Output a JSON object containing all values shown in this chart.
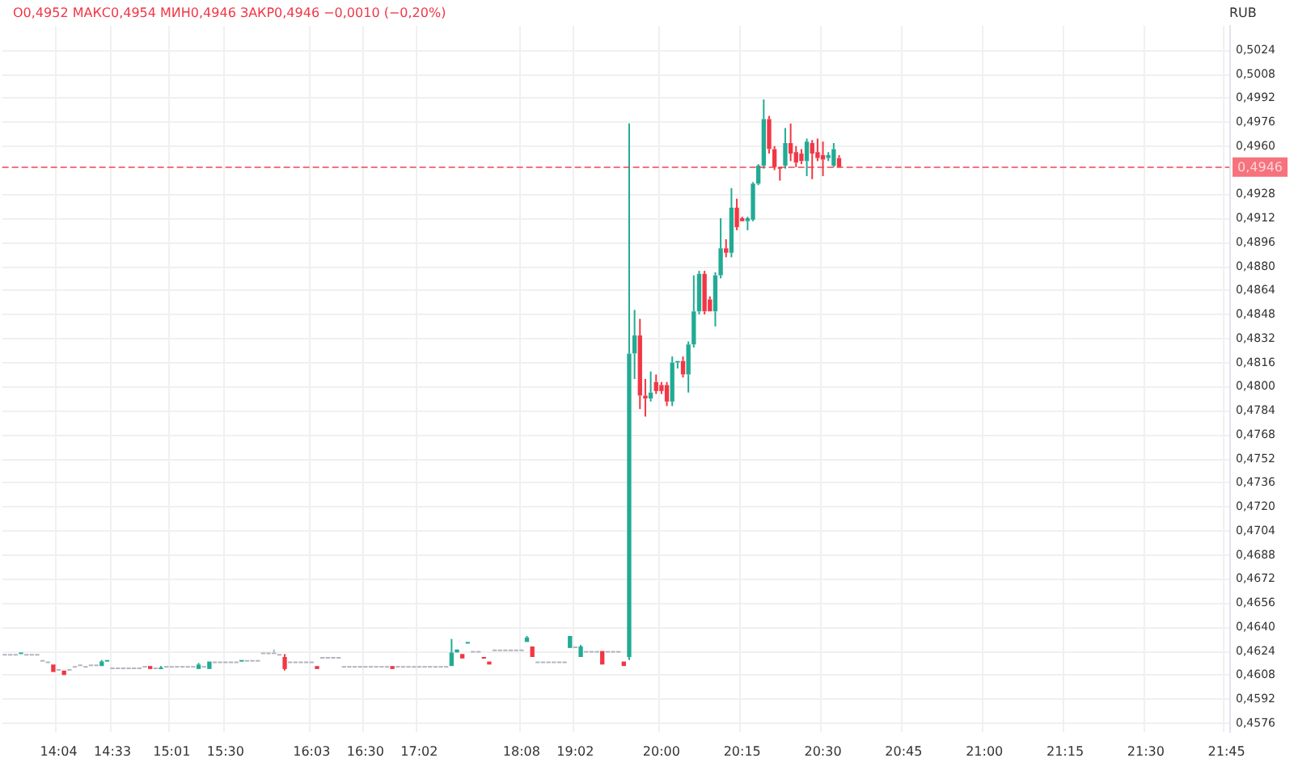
{
  "chart_data": {
    "type": "candlestick",
    "ylabel": "RUB",
    "annotations": [
      "О0,4952 МАКС0,4954 МИН0,4946 ЗАКР0,4946 −0,0010 (−0,20%)"
    ],
    "colors": [
      "#b2b5be",
      "#b2b5be",
      "#b2b5be",
      "#22ab94",
      "#b2b5be",
      "#b2b5be",
      "#b2b5be",
      "#b2b5be",
      "#b2b5be",
      "#f23645",
      "#b2b5be",
      "#f23645",
      "#b2b5be",
      "#b2b5be",
      "#b2b5be",
      "#b2b5be",
      "#b2b5be",
      "#b2b5be",
      "#22ab94",
      "#22ab94",
      "#b2b5be",
      "#b2b5be",
      "#b2b5be",
      "#b2b5be",
      "#b2b5be",
      "#b2b5be",
      "#b2b5be",
      "#f23645",
      "#b2b5be",
      "#22ab94",
      "#b2b5be",
      "#b2b5be",
      "#b2b5be",
      "#b2b5be",
      "#b2b5be",
      "#b2b5be",
      "#22ab94",
      "#b2b5be",
      "#22ab94",
      "#b2b5be",
      "#b2b5be",
      "#b2b5be",
      "#b2b5be",
      "#b2b5be",
      "#22ab94",
      "#b2b5be",
      "#b2b5be",
      "#b2b5be",
      "#b2b5be",
      "#b2b5be",
      "#b2b5be",
      "#b2b5be",
      "#f23645",
      "#b2b5be",
      "#b2b5be",
      "#b2b5be",
      "#b2b5be",
      "#b2b5be",
      "#f23645",
      "#b2b5be",
      "#b2b5be",
      "#b2b5be",
      "#b2b5be",
      "#b2b5be",
      "#b2b5be",
      "#b2b5be",
      "#b2b5be",
      "#b2b5be",
      "#b2b5be",
      "#b2b5be",
      "#b2b5be",
      "#b2b5be",
      "#f23645",
      "#b2b5be",
      "#b2b5be",
      "#b2b5be",
      "#b2b5be",
      "#b2b5be",
      "#b2b5be",
      "#b2b5be",
      "#b2b5be",
      "#b2b5be",
      "#b2b5be",
      "#22ab94",
      "#22ab94",
      "#f23645",
      "#22ab94",
      "#b2b5be",
      "#b2b5be",
      "#f23645",
      "#f23645",
      "#b2b5be",
      "#b2b5be",
      "#b2b5be",
      "#b2b5be",
      "#b2b5be",
      "#b2b5be",
      "#22ab94",
      "#f23645",
      "#b2b5be",
      "#b2b5be",
      "#b2b5be",
      "#b2b5be",
      "#b2b5be",
      "#b2b5be",
      "#22ab94",
      "#b2b5be",
      "#22ab94",
      "#b2b5be",
      "#b2b5be",
      "#b2b5be",
      "#f23645",
      "#b2b5be",
      "#b2b5be",
      "#b2b5be",
      "#f23645",
      "#22ab94",
      "#22ab94",
      "#f23645",
      "#f23645",
      "#22ab94",
      "#f23645",
      "#f23645",
      "#f23645",
      "#22ab94",
      "#22ab94",
      "#f23645",
      "#22ab94",
      "#22ab94",
      "#22ab94",
      "#f23645",
      "#f23645",
      "#22ab94",
      "#22ab94",
      "#f23645",
      "#22ab94",
      "#f23645",
      "#f23645",
      "#22ab94",
      "#22ab94",
      "#22ab94",
      "#22ab94",
      "#f23645",
      "#f23645",
      "#f23645",
      "#22ab94",
      "#f23645",
      "#f23645",
      "#f23645",
      "#22ab94",
      "#f23645",
      "#f23645",
      "#f23645",
      "#22ab94",
      "#22ab94",
      "#f23645",
      null,
      null,
      null,
      null,
      null,
      null,
      null,
      null,
      null,
      null,
      null,
      null,
      null,
      null,
      null,
      null,
      null,
      null,
      null,
      null,
      null,
      null,
      null,
      null,
      null,
      null,
      null,
      null,
      null,
      null,
      null,
      null,
      null,
      null,
      null,
      null,
      null,
      null,
      null,
      null,
      null,
      null,
      null,
      null,
      null,
      null,
      null,
      null,
      null,
      null,
      null,
      null,
      null,
      null,
      null,
      null,
      null,
      null,
      null,
      null,
      null,
      null,
      null,
      null,
      null,
      null,
      null,
      null,
      null,
      null,
      null,
      null
    ],
    "grid": true,
    "ylim": [
      0.457,
      0.504
    ],
    "yticks": [
      {
        "value": 0.4576,
        "label": "0,4576"
      },
      {
        "value": 0.4592,
        "label": "0,4592"
      },
      {
        "value": 0.4608,
        "label": "0,4608"
      },
      {
        "value": 0.4624,
        "label": "0,4624"
      },
      {
        "value": 0.464,
        "label": "0,4640"
      },
      {
        "value": 0.4656,
        "label": "0,4656"
      },
      {
        "value": 0.4672,
        "label": "0,4672"
      },
      {
        "value": 0.4688,
        "label": "0,4688"
      },
      {
        "value": 0.4704,
        "label": "0,4704"
      },
      {
        "value": 0.472,
        "label": "0,4720"
      },
      {
        "value": 0.4736,
        "label": "0,4736"
      },
      {
        "value": 0.4752,
        "label": "0,4752"
      },
      {
        "value": 0.4768,
        "label": "0,4768"
      },
      {
        "value": 0.4784,
        "label": "0,4784"
      },
      {
        "value": 0.48,
        "label": "0,4800"
      },
      {
        "value": 0.4816,
        "label": "0,4816"
      },
      {
        "value": 0.4832,
        "label": "0,4832"
      },
      {
        "value": 0.4848,
        "label": "0,4848"
      },
      {
        "value": 0.4864,
        "label": "0,4864"
      },
      {
        "value": 0.488,
        "label": "0,4880"
      },
      {
        "value": 0.4896,
        "label": "0,4896"
      },
      {
        "value": 0.4912,
        "label": "0,4912"
      },
      {
        "value": 0.4928,
        "label": "0,4928"
      },
      {
        "value": 0.4976,
        "label": "0,4976"
      },
      {
        "value": 0.4992,
        "label": "0,4992"
      },
      {
        "value": 0.5008,
        "label": "0,5008"
      },
      {
        "value": 0.5024,
        "label": "0,5024"
      },
      {
        "value": 0.496,
        "label": "0,4960"
      }
    ],
    "ref_lines": [
      {
        "axis": "y",
        "value": 0.4946,
        "label": "0,4946",
        "color": "#f23645",
        "line_style": "dashed"
      }
    ],
    "categories": [
      null,
      null,
      null,
      null,
      null,
      null,
      null,
      null,
      null,
      null,
      "14:04",
      null,
      null,
      null,
      null,
      null,
      null,
      null,
      null,
      null,
      "14:33",
      null,
      null,
      null,
      null,
      null,
      null,
      null,
      null,
      null,
      null,
      "15:01",
      null,
      null,
      null,
      null,
      null,
      null,
      null,
      null,
      null,
      "15:30",
      null,
      null,
      null,
      null,
      null,
      null,
      null,
      null,
      null,
      null,
      null,
      null,
      null,
      null,
      null,
      "16:03",
      null,
      null,
      null,
      null,
      null,
      null,
      null,
      null,
      null,
      "16:30",
      null,
      null,
      null,
      null,
      null,
      null,
      null,
      null,
      null,
      "17:02",
      null,
      null,
      null,
      null,
      null,
      null,
      null,
      null,
      null,
      null,
      null,
      null,
      null,
      null,
      null,
      null,
      null,
      null,
      "18:08",
      null,
      null,
      null,
      null,
      null,
      null,
      null,
      null,
      null,
      "19:02",
      null,
      null,
      null,
      null,
      null,
      null,
      null,
      null,
      null,
      null,
      null,
      null,
      null,
      null,
      null,
      "20:00",
      null,
      null,
      null,
      null,
      null,
      null,
      null,
      null,
      null,
      null,
      null,
      null,
      null,
      null,
      "20:15",
      null,
      null,
      null,
      null,
      null,
      null,
      null,
      null,
      null,
      null,
      null,
      null,
      null,
      null,
      "20:30",
      null,
      null,
      null,
      null,
      null,
      null,
      null,
      null,
      null,
      null,
      null,
      null,
      null,
      null,
      "20:45",
      null,
      null,
      null,
      null,
      null,
      null,
      null,
      null,
      null,
      null,
      null,
      null,
      null,
      null,
      "21:00",
      null,
      null,
      null,
      null,
      null,
      null,
      null,
      null,
      null,
      null,
      null,
      null,
      null,
      null,
      "21:15",
      null,
      null,
      null,
      null,
      null,
      null,
      null,
      null,
      null,
      null,
      null,
      null,
      null,
      null,
      "21:30",
      null,
      null,
      null,
      null,
      null,
      null,
      null,
      null,
      null,
      null,
      null,
      null,
      null,
      null,
      "21:45"
    ],
    "ohlc": [
      [
        0.4622,
        0.4622,
        0.4622,
        0.4622
      ],
      [
        0.4622,
        0.4622,
        0.4622,
        0.4622
      ],
      [
        0.4622,
        0.4622,
        0.4622,
        0.4622
      ],
      [
        0.4622,
        0.4623,
        0.4622,
        0.4623
      ],
      [
        0.4622,
        0.4622,
        0.4622,
        0.4622
      ],
      [
        0.4622,
        0.4622,
        0.4622,
        0.4622
      ],
      [
        0.4622,
        0.4622,
        0.4622,
        0.4622
      ],
      [
        0.4618,
        0.4618,
        0.4618,
        0.4618
      ],
      [
        0.4617,
        0.4617,
        0.4617,
        0.4617
      ],
      [
        0.4615,
        0.4615,
        0.461,
        0.461
      ],
      [
        0.4612,
        0.4612,
        0.4612,
        0.4612
      ],
      [
        0.4611,
        0.4611,
        0.4608,
        0.4608
      ],
      [
        0.4612,
        0.4612,
        0.4612,
        0.4612
      ],
      [
        0.4614,
        0.4614,
        0.4614,
        0.4614
      ],
      [
        0.4615,
        0.4615,
        0.4615,
        0.4615
      ],
      [
        0.4614,
        0.4614,
        0.4614,
        0.4614
      ],
      [
        0.4615,
        0.4615,
        0.4615,
        0.4615
      ],
      [
        0.4615,
        0.4615,
        0.4615,
        0.4615
      ],
      [
        0.4614,
        0.4618,
        0.4614,
        0.4617
      ],
      [
        0.4617,
        0.4618,
        0.4617,
        0.4618
      ],
      [
        0.4613,
        0.4613,
        0.4613,
        0.4613
      ],
      [
        0.4613,
        0.4613,
        0.4613,
        0.4613
      ],
      [
        0.4613,
        0.4613,
        0.4613,
        0.4613
      ],
      [
        0.4613,
        0.4613,
        0.4613,
        0.4613
      ],
      [
        0.4613,
        0.4613,
        0.4613,
        0.4613
      ],
      [
        0.4613,
        0.4613,
        0.4613,
        0.4613
      ],
      [
        0.4614,
        0.4614,
        0.4614,
        0.4614
      ],
      [
        0.4614,
        0.4614,
        0.4612,
        0.4612
      ],
      [
        0.4613,
        0.4613,
        0.4613,
        0.4613
      ],
      [
        0.4612,
        0.4614,
        0.4612,
        0.4613
      ],
      [
        0.4614,
        0.4614,
        0.4614,
        0.4614
      ],
      [
        0.4614,
        0.4614,
        0.4614,
        0.4614
      ],
      [
        0.4614,
        0.4614,
        0.4614,
        0.4614
      ],
      [
        0.4614,
        0.4614,
        0.4614,
        0.4614
      ],
      [
        0.4614,
        0.4614,
        0.4614,
        0.4614
      ],
      [
        0.4614,
        0.4614,
        0.4614,
        0.4614
      ],
      [
        0.4612,
        0.4616,
        0.4612,
        0.4615
      ],
      [
        0.4614,
        0.4614,
        0.4614,
        0.4614
      ],
      [
        0.4612,
        0.4617,
        0.4612,
        0.4617
      ],
      [
        0.4617,
        0.4617,
        0.4617,
        0.4617
      ],
      [
        0.4617,
        0.4617,
        0.4617,
        0.4617
      ],
      [
        0.4617,
        0.4617,
        0.4617,
        0.4617
      ],
      [
        0.4617,
        0.4617,
        0.4617,
        0.4617
      ],
      [
        0.4617,
        0.4617,
        0.4617,
        0.4617
      ],
      [
        0.4617,
        0.4618,
        0.4617,
        0.4618
      ],
      [
        0.4618,
        0.4618,
        0.4618,
        0.4618
      ],
      [
        0.4618,
        0.4618,
        0.4618,
        0.4618
      ],
      [
        0.4618,
        0.4618,
        0.4618,
        0.4618
      ],
      [
        0.4623,
        0.4623,
        0.4623,
        0.4623
      ],
      [
        0.4623,
        0.4623,
        0.4623,
        0.4623
      ],
      [
        0.4623,
        0.4625,
        0.4623,
        0.4623
      ],
      [
        0.4622,
        0.4622,
        0.4622,
        0.4622
      ],
      [
        0.462,
        0.4622,
        0.4611,
        0.4612
      ],
      [
        0.4617,
        0.4617,
        0.4617,
        0.4617
      ],
      [
        0.4617,
        0.4617,
        0.4617,
        0.4617
      ],
      [
        0.4617,
        0.4617,
        0.4617,
        0.4617
      ],
      [
        0.4617,
        0.4617,
        0.4617,
        0.4617
      ],
      [
        0.4617,
        0.4617,
        0.4617,
        0.4617
      ],
      [
        0.4614,
        0.4614,
        0.4612,
        0.4612
      ],
      [
        0.462,
        0.462,
        0.462,
        0.462
      ],
      [
        0.462,
        0.462,
        0.462,
        0.462
      ],
      [
        0.462,
        0.462,
        0.462,
        0.462
      ],
      [
        0.462,
        0.462,
        0.462,
        0.462
      ],
      [
        0.4614,
        0.4614,
        0.4614,
        0.4614
      ],
      [
        0.4614,
        0.4614,
        0.4614,
        0.4614
      ],
      [
        0.4614,
        0.4614,
        0.4614,
        0.4614
      ],
      [
        0.4614,
        0.4614,
        0.4614,
        0.4614
      ],
      [
        0.4614,
        0.4614,
        0.4614,
        0.4614
      ],
      [
        0.4614,
        0.4614,
        0.4614,
        0.4614
      ],
      [
        0.4614,
        0.4614,
        0.4614,
        0.4614
      ],
      [
        0.4614,
        0.4614,
        0.4614,
        0.4614
      ],
      [
        0.4614,
        0.4614,
        0.4614,
        0.4614
      ],
      [
        0.4614,
        0.4614,
        0.4612,
        0.4612
      ],
      [
        0.4614,
        0.4614,
        0.4614,
        0.4614
      ],
      [
        0.4614,
        0.4614,
        0.4614,
        0.4614
      ],
      [
        0.4614,
        0.4614,
        0.4614,
        0.4614
      ],
      [
        0.4614,
        0.4614,
        0.4614,
        0.4614
      ],
      [
        0.4614,
        0.4614,
        0.4614,
        0.4614
      ],
      [
        0.4614,
        0.4614,
        0.4614,
        0.4614
      ],
      [
        0.4614,
        0.4614,
        0.4614,
        0.4614
      ],
      [
        0.4614,
        0.4614,
        0.4614,
        0.4614
      ],
      [
        0.4614,
        0.4614,
        0.4614,
        0.4614
      ],
      [
        0.4614,
        0.4614,
        0.4614,
        0.4614
      ],
      [
        0.4614,
        0.4632,
        0.4614,
        0.4623
      ],
      [
        0.4623,
        0.4625,
        0.4623,
        0.4625
      ],
      [
        0.4622,
        0.4622,
        0.4619,
        0.4619
      ],
      [
        0.4629,
        0.463,
        0.4629,
        0.463
      ],
      [
        0.4624,
        0.4624,
        0.4624,
        0.4624
      ],
      [
        0.4624,
        0.4624,
        0.4624,
        0.4624
      ],
      [
        0.462,
        0.462,
        0.4619,
        0.4619
      ],
      [
        0.4617,
        0.4617,
        0.4615,
        0.4615
      ],
      [
        0.4625,
        0.4625,
        0.4625,
        0.4625
      ],
      [
        0.4625,
        0.4625,
        0.4625,
        0.4625
      ],
      [
        0.4625,
        0.4625,
        0.4625,
        0.4625
      ],
      [
        0.4625,
        0.4625,
        0.4625,
        0.4625
      ],
      [
        0.4625,
        0.4625,
        0.4625,
        0.4625
      ],
      [
        0.4625,
        0.4625,
        0.4625,
        0.4625
      ],
      [
        0.463,
        0.4634,
        0.463,
        0.4633
      ],
      [
        0.4627,
        0.4627,
        0.462,
        0.462
      ],
      [
        0.4617,
        0.4617,
        0.4617,
        0.4617
      ],
      [
        0.4617,
        0.4617,
        0.4617,
        0.4617
      ],
      [
        0.4617,
        0.4617,
        0.4617,
        0.4617
      ],
      [
        0.4617,
        0.4617,
        0.4617,
        0.4617
      ],
      [
        0.4617,
        0.4617,
        0.4617,
        0.4617
      ],
      [
        0.4617,
        0.4617,
        0.4617,
        0.4617
      ],
      [
        0.4626,
        0.4634,
        0.4626,
        0.4634
      ],
      [
        0.4627,
        0.4627,
        0.4627,
        0.4627
      ],
      [
        0.462,
        0.4628,
        0.462,
        0.4627
      ],
      [
        0.4624,
        0.4624,
        0.4624,
        0.4624
      ],
      [
        0.4624,
        0.4624,
        0.4624,
        0.4624
      ],
      [
        0.4624,
        0.4624,
        0.4624,
        0.4624
      ],
      [
        0.4624,
        0.4624,
        0.4615,
        0.4615
      ],
      [
        0.4624,
        0.4624,
        0.4624,
        0.4624
      ],
      [
        0.4624,
        0.4624,
        0.4624,
        0.4624
      ],
      [
        0.4624,
        0.4624,
        0.4624,
        0.4624
      ],
      [
        0.4617,
        0.4617,
        0.4614,
        0.4614
      ],
      [
        0.462,
        0.4975,
        0.4618,
        0.4822
      ],
      [
        0.4822,
        0.4851,
        0.4805,
        0.4834
      ],
      [
        0.4834,
        0.4845,
        0.4785,
        0.4794
      ],
      [
        0.4794,
        0.4805,
        0.478,
        0.4792
      ],
      [
        0.4792,
        0.481,
        0.479,
        0.4796
      ],
      [
        0.4803,
        0.4808,
        0.4795,
        0.4797
      ],
      [
        0.4801,
        0.4803,
        0.4795,
        0.4797
      ],
      [
        0.4801,
        0.4803,
        0.4787,
        0.479
      ],
      [
        0.479,
        0.482,
        0.4787,
        0.4816
      ],
      [
        0.4816,
        0.4817,
        0.4812,
        0.4817
      ],
      [
        0.4817,
        0.482,
        0.4806,
        0.4808
      ],
      [
        0.4808,
        0.483,
        0.4796,
        0.4828
      ],
      [
        0.4828,
        0.4874,
        0.4826,
        0.485
      ],
      [
        0.485,
        0.4877,
        0.4848,
        0.4875
      ],
      [
        0.4875,
        0.4877,
        0.4848,
        0.485
      ],
      [
        0.4858,
        0.486,
        0.485,
        0.485
      ],
      [
        0.485,
        0.4876,
        0.484,
        0.4874
      ],
      [
        0.4874,
        0.4912,
        0.4872,
        0.4892
      ],
      [
        0.4892,
        0.4898,
        0.4886,
        0.4889
      ],
      [
        0.4889,
        0.4932,
        0.4886,
        0.4919
      ],
      [
        0.4919,
        0.4925,
        0.4904,
        0.4906
      ],
      [
        0.4912,
        0.4913,
        0.491,
        0.491
      ],
      [
        0.491,
        0.4913,
        0.4904,
        0.4912
      ],
      [
        0.4911,
        0.4936,
        0.491,
        0.4935
      ],
      [
        0.4935,
        0.4948,
        0.4934,
        0.4947
      ],
      [
        0.4947,
        0.4991,
        0.4945,
        0.4978
      ],
      [
        0.4978,
        0.498,
        0.4955,
        0.4958
      ],
      [
        0.4958,
        0.496,
        0.4944,
        0.4946
      ],
      [
        0.4946,
        0.4946,
        0.4937,
        0.4945
      ],
      [
        0.4947,
        0.4972,
        0.4945,
        0.4962
      ],
      [
        0.4962,
        0.4975,
        0.495,
        0.4955
      ],
      [
        0.4956,
        0.496,
        0.4946,
        0.4949
      ],
      [
        0.4955,
        0.4958,
        0.4948,
        0.495
      ],
      [
        0.495,
        0.4965,
        0.494,
        0.4963
      ],
      [
        0.4962,
        0.4964,
        0.4938,
        0.4955
      ],
      [
        0.4956,
        0.4965,
        0.495,
        0.4952
      ],
      [
        0.4954,
        0.4963,
        0.494,
        0.4951
      ],
      [
        0.4952,
        0.4956,
        0.495,
        0.4954
      ],
      [
        0.4947,
        0.4962,
        0.4946,
        0.4958
      ],
      [
        0.4952,
        0.4954,
        0.4946,
        0.4946
      ],
      null,
      null,
      null,
      null,
      null,
      null,
      null,
      null,
      null,
      null,
      null,
      null,
      null,
      null,
      null,
      null,
      null,
      null,
      null,
      null,
      null,
      null,
      null,
      null,
      null,
      null,
      null,
      null,
      null,
      null,
      null,
      null,
      null,
      null,
      null,
      null,
      null,
      null,
      null,
      null,
      null,
      null,
      null,
      null,
      null,
      null,
      null,
      null,
      null,
      null,
      null,
      null,
      null,
      null,
      null,
      null,
      null,
      null,
      null,
      null,
      null,
      null,
      null,
      null,
      null,
      null,
      null,
      null,
      null,
      null,
      null,
      null
    ]
  }
}
